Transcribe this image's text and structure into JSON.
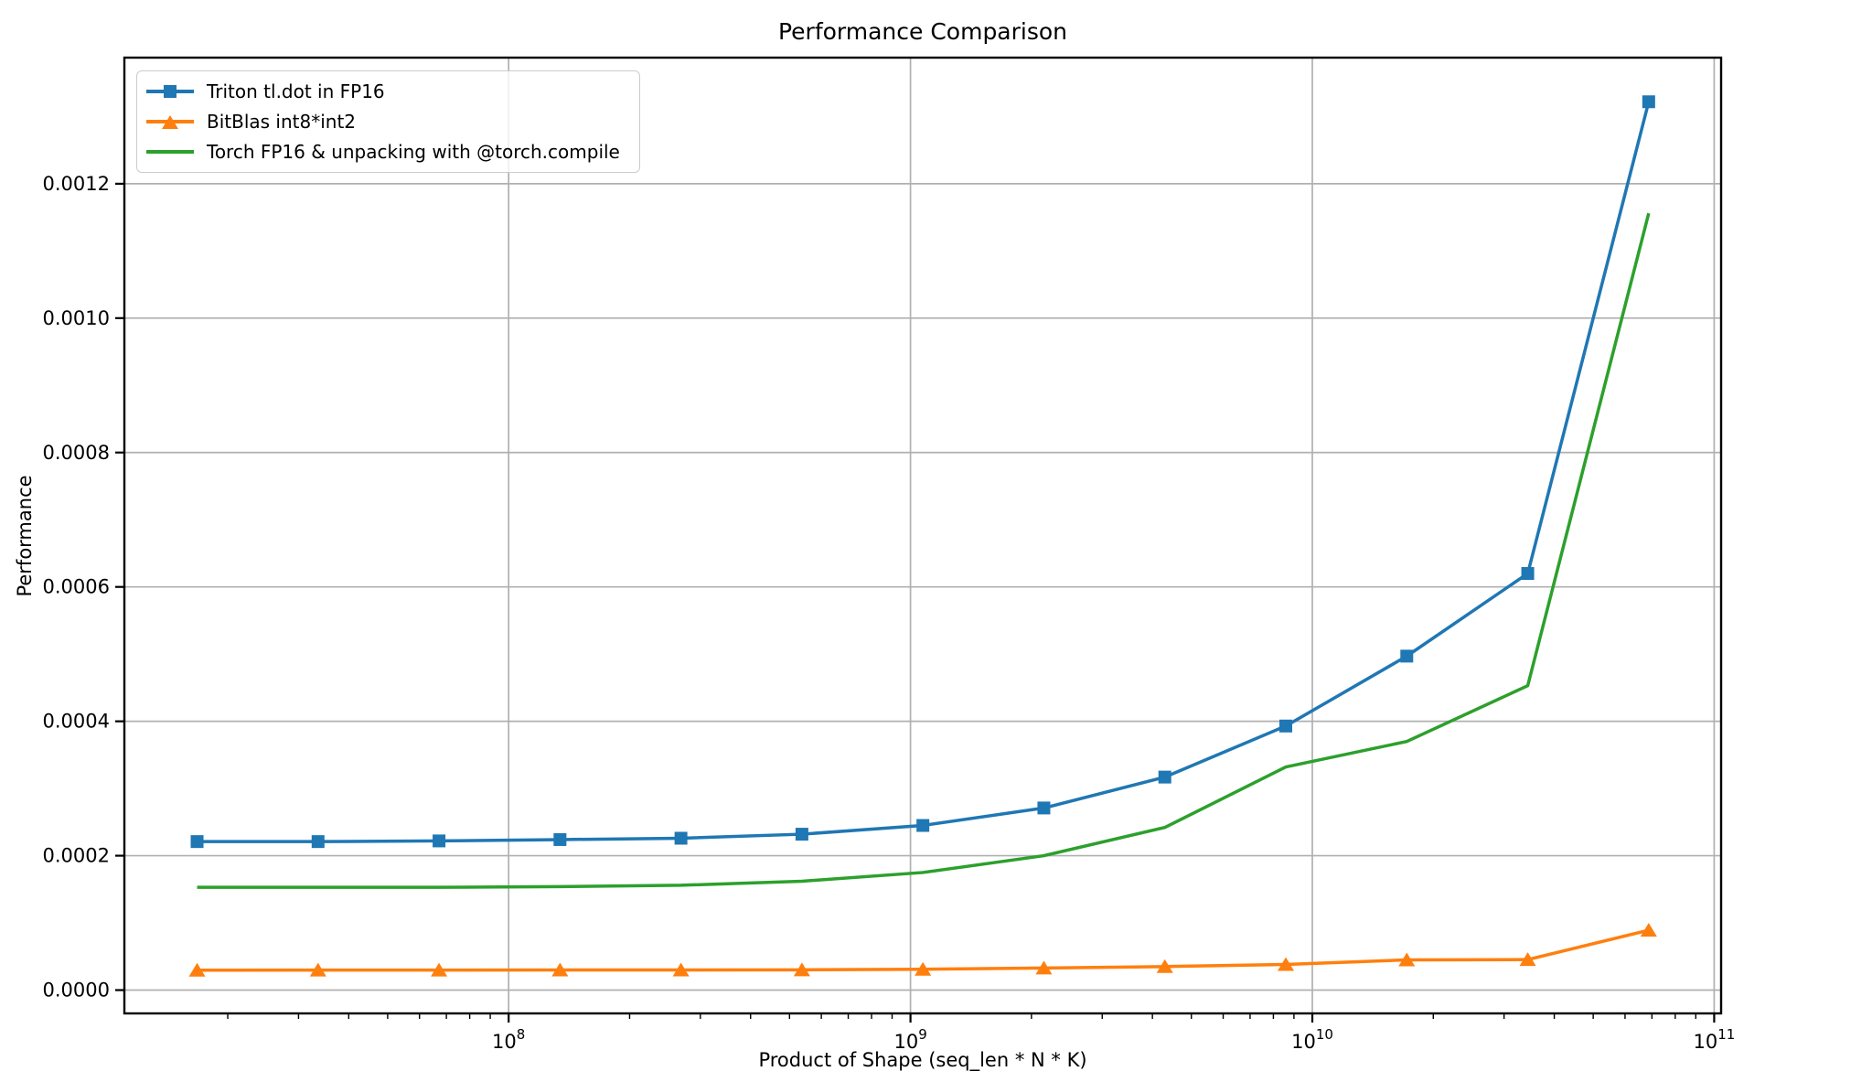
{
  "chart_data": {
    "type": "line",
    "title": "Performance Comparison",
    "xlabel": "Product of Shape (seq_len * N * K)",
    "ylabel": "Performance",
    "x_scale": "log",
    "xlim": [
      11060000,
      104050000000
    ],
    "ylim": [
      -3.47e-05,
      0.0013877
    ],
    "x_major_ticks": [
      100000000,
      1000000000,
      10000000000,
      100000000000
    ],
    "y_ticks": [
      0.0,
      0.0002,
      0.0004,
      0.0006,
      0.0008,
      0.001,
      0.0012
    ],
    "grid": true,
    "legend_position": "upper left",
    "x": [
      16777216,
      33554432,
      67108864,
      134217728,
      268435456,
      536870912,
      1073741824,
      2147483648,
      4294967296,
      8589934592,
      17179869184,
      34359738368,
      68719476736
    ],
    "series": [
      {
        "name": "Triton tl.dot in FP16",
        "color": "#1f77b4",
        "marker": "square",
        "values": [
          0.000221,
          0.000221,
          0.000222,
          0.000224,
          0.000226,
          0.000232,
          0.000245,
          0.000271,
          0.000317,
          0.000393,
          0.000497,
          0.00062,
          0.001322
        ]
      },
      {
        "name": "BitBlas int8*int2",
        "color": "#ff7f0e",
        "marker": "triangle",
        "values": [
          2.96e-05,
          2.97e-05,
          2.98e-05,
          2.99e-05,
          3e-05,
          3.02e-05,
          3.1e-05,
          3.28e-05,
          3.5e-05,
          3.82e-05,
          4.5e-05,
          4.54e-05,
          8.91e-05
        ]
      },
      {
        "name": "Torch FP16 & unpacking with @torch.compile",
        "color": "#2ca02c",
        "marker": "none",
        "values": [
          0.000153,
          0.000153,
          0.000153,
          0.000154,
          0.000156,
          0.000162,
          0.000175,
          0.0002,
          0.000242,
          0.000332,
          0.00037,
          0.000453,
          0.001156
        ]
      }
    ],
    "style": {
      "grid_color": "#b0b0b0",
      "spine_color": "#000000",
      "background": "#ffffff"
    }
  }
}
